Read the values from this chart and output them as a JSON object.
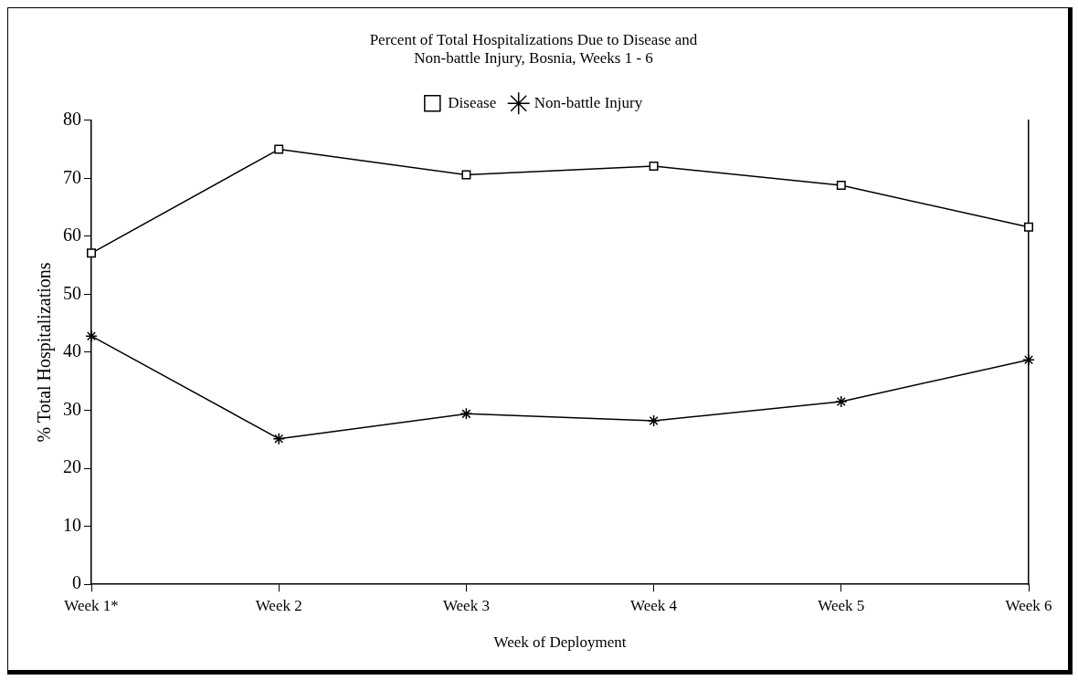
{
  "chart_data": {
    "type": "line",
    "title": [
      "Percent of Total Hospitalizations Due to Disease and",
      "Non-battle Injury, Bosnia, Weeks 1 - 6"
    ],
    "xlabel": "Week of Deployment",
    "ylabel": "% Total Hospitalizations",
    "categories": [
      "Week 1*",
      "Week 2",
      "Week 3",
      "Week 4",
      "Week 5",
      "Week 6"
    ],
    "series": [
      {
        "name": "Disease",
        "color": "#000000",
        "marker": "square",
        "values": [
          57.1,
          75.0,
          70.6,
          72.1,
          68.8,
          61.6
        ]
      },
      {
        "name": "Non-battle Injury",
        "color": "#000000",
        "marker": "cross",
        "values": [
          42.8,
          25.1,
          29.4,
          28.2,
          31.5,
          38.7
        ]
      }
    ],
    "ylim": [
      0,
      80
    ],
    "yticks": [
      0,
      10,
      20,
      30,
      40,
      50,
      60,
      70,
      80
    ],
    "grid": false,
    "legend": "top"
  }
}
